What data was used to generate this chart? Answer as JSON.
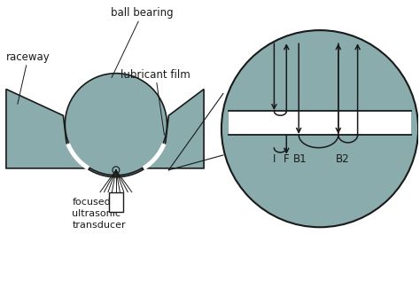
{
  "bg_color": "#ffffff",
  "fill_color": "#8aacac",
  "line_color": "#1a1a1a",
  "text_color": "#1a1a1a",
  "labels": {
    "ball_bearing": "ball bearing",
    "raceway": "raceway",
    "lubricant_film": "lubricant film",
    "transducer": "focused\nultrasonic\ntransducer",
    "I": "I",
    "F": "F",
    "B1": "B1",
    "B2": "B2"
  },
  "fontsize": 8.5,
  "fig_w": 4.74,
  "fig_h": 3.35,
  "dpi": 100
}
